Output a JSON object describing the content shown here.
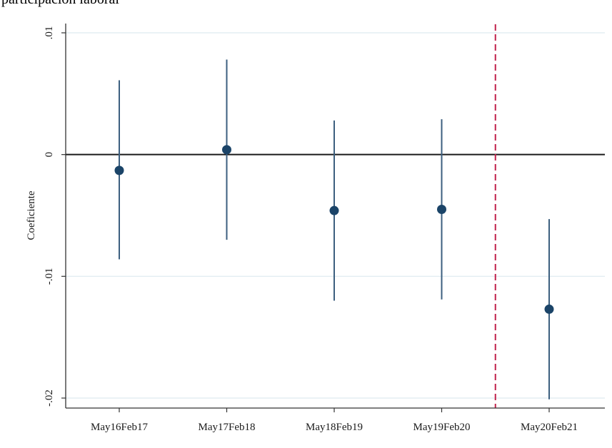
{
  "title": "participación laboral",
  "chart_data": {
    "type": "scatter",
    "subtype": "coefficient-plot",
    "title": "participación laboral",
    "xlabel": "",
    "ylabel": "Coeficiente",
    "categories": [
      "May16Feb17",
      "May17Feb18",
      "May18Feb19",
      "May19Feb20",
      "May20Feb21"
    ],
    "coefficients": [
      -0.0013,
      0.0004,
      -0.0046,
      -0.0045,
      -0.0127
    ],
    "ci_lower": [
      -0.0086,
      -0.007,
      -0.012,
      -0.0119,
      -0.0201
    ],
    "ci_upper": [
      0.0061,
      0.0078,
      0.0028,
      0.0029,
      -0.0053
    ],
    "ylim": [
      -0.0205,
      0.0115
    ],
    "yticks": [
      0.01,
      0,
      -0.01,
      -0.02
    ],
    "ytick_labels": [
      ".01",
      "0",
      "-.01",
      "-.02"
    ],
    "reference_line_y": 0,
    "reference_line_x_between": [
      "May19Feb20",
      "May20Feb21"
    ],
    "grid": true,
    "colors": {
      "point": "#1b4468",
      "errorbar": "#3c5f7f",
      "zero_line": "#1a1a1a",
      "event_line": "#c1214a",
      "grid": "#dde9ef",
      "axis": "#333333"
    }
  }
}
